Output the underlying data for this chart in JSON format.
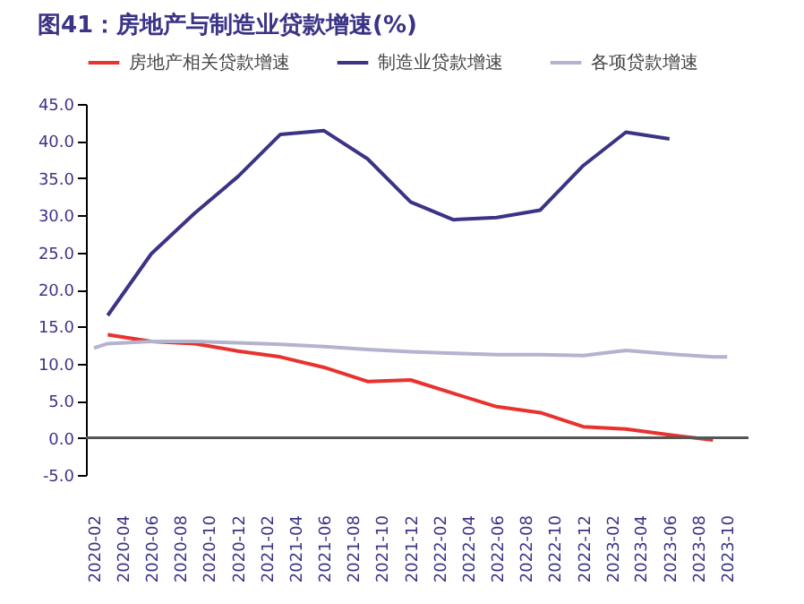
{
  "chart_data": {
    "type": "line",
    "title": "图41：房地产与制造业贷款增速(%)",
    "x": [
      "2020-03",
      "2020-06",
      "2020-09",
      "2020-12",
      "2021-03",
      "2021-06",
      "2021-09",
      "2021-12",
      "2022-03",
      "2022-06",
      "2022-09",
      "2022-12",
      "2023-03",
      "2023-06",
      "2023-09"
    ],
    "series": [
      {
        "name": "房地产相关贷款增速",
        "color": "#e8322e",
        "values": [
          13.9,
          13.0,
          12.7,
          11.7,
          10.9,
          9.5,
          7.6,
          7.8,
          6.0,
          4.2,
          3.4,
          1.5,
          1.2,
          0.4,
          -0.3
        ]
      },
      {
        "name": "制造业贷款增速",
        "color": "#3b3486",
        "values": [
          16.5,
          24.8,
          30.3,
          35.2,
          40.9,
          41.4,
          37.6,
          31.8,
          29.4,
          29.7,
          30.7,
          36.7,
          41.2,
          40.3,
          null
        ]
      },
      {
        "name": "各项贷款增速",
        "color": "#b3b3cf",
        "x": [
          "2020-02",
          "2020-03",
          "2020-06",
          "2020-09",
          "2020-12",
          "2021-03",
          "2021-06",
          "2021-09",
          "2021-12",
          "2022-03",
          "2022-06",
          "2022-09",
          "2022-12",
          "2023-03",
          "2023-06",
          "2023-09",
          "2023-10"
        ],
        "values": [
          12.1,
          12.7,
          13.0,
          13.0,
          12.8,
          12.6,
          12.3,
          11.9,
          11.6,
          11.4,
          11.2,
          11.2,
          11.1,
          11.8,
          11.3,
          10.9,
          10.9
        ]
      }
    ],
    "xlim": [
      "2020-01-15",
      "2023-11-15"
    ],
    "xticks": [
      "2020-02",
      "2020-04",
      "2020-06",
      "2020-08",
      "2020-10",
      "2020-12",
      "2021-02",
      "2021-04",
      "2021-06",
      "2021-08",
      "2021-10",
      "2021-12",
      "2022-02",
      "2022-04",
      "2022-06",
      "2022-08",
      "2022-10",
      "2022-12",
      "2023-02",
      "2023-04",
      "2023-06",
      "2023-08",
      "2023-10"
    ],
    "ylim": [
      -5,
      45
    ],
    "yticks": [
      {
        "value": -5,
        "label": "-5.0"
      },
      {
        "value": 0,
        "label": "0.0"
      },
      {
        "value": 5,
        "label": "5.0"
      },
      {
        "value": 10,
        "label": "10.0"
      },
      {
        "value": 15,
        "label": "15.0"
      },
      {
        "value": 20,
        "label": "20.0"
      },
      {
        "value": 25,
        "label": "25.0"
      },
      {
        "value": 30,
        "label": "30.0"
      },
      {
        "value": 35,
        "label": "35.0"
      },
      {
        "value": 40,
        "label": "40.0"
      },
      {
        "value": 45,
        "label": "45.0"
      }
    ],
    "ref_lines": [
      {
        "axis": "y",
        "value": 0,
        "color": "#555555"
      }
    ],
    "grid": false,
    "legend": "top",
    "marker": "none",
    "line_style": "solid"
  }
}
